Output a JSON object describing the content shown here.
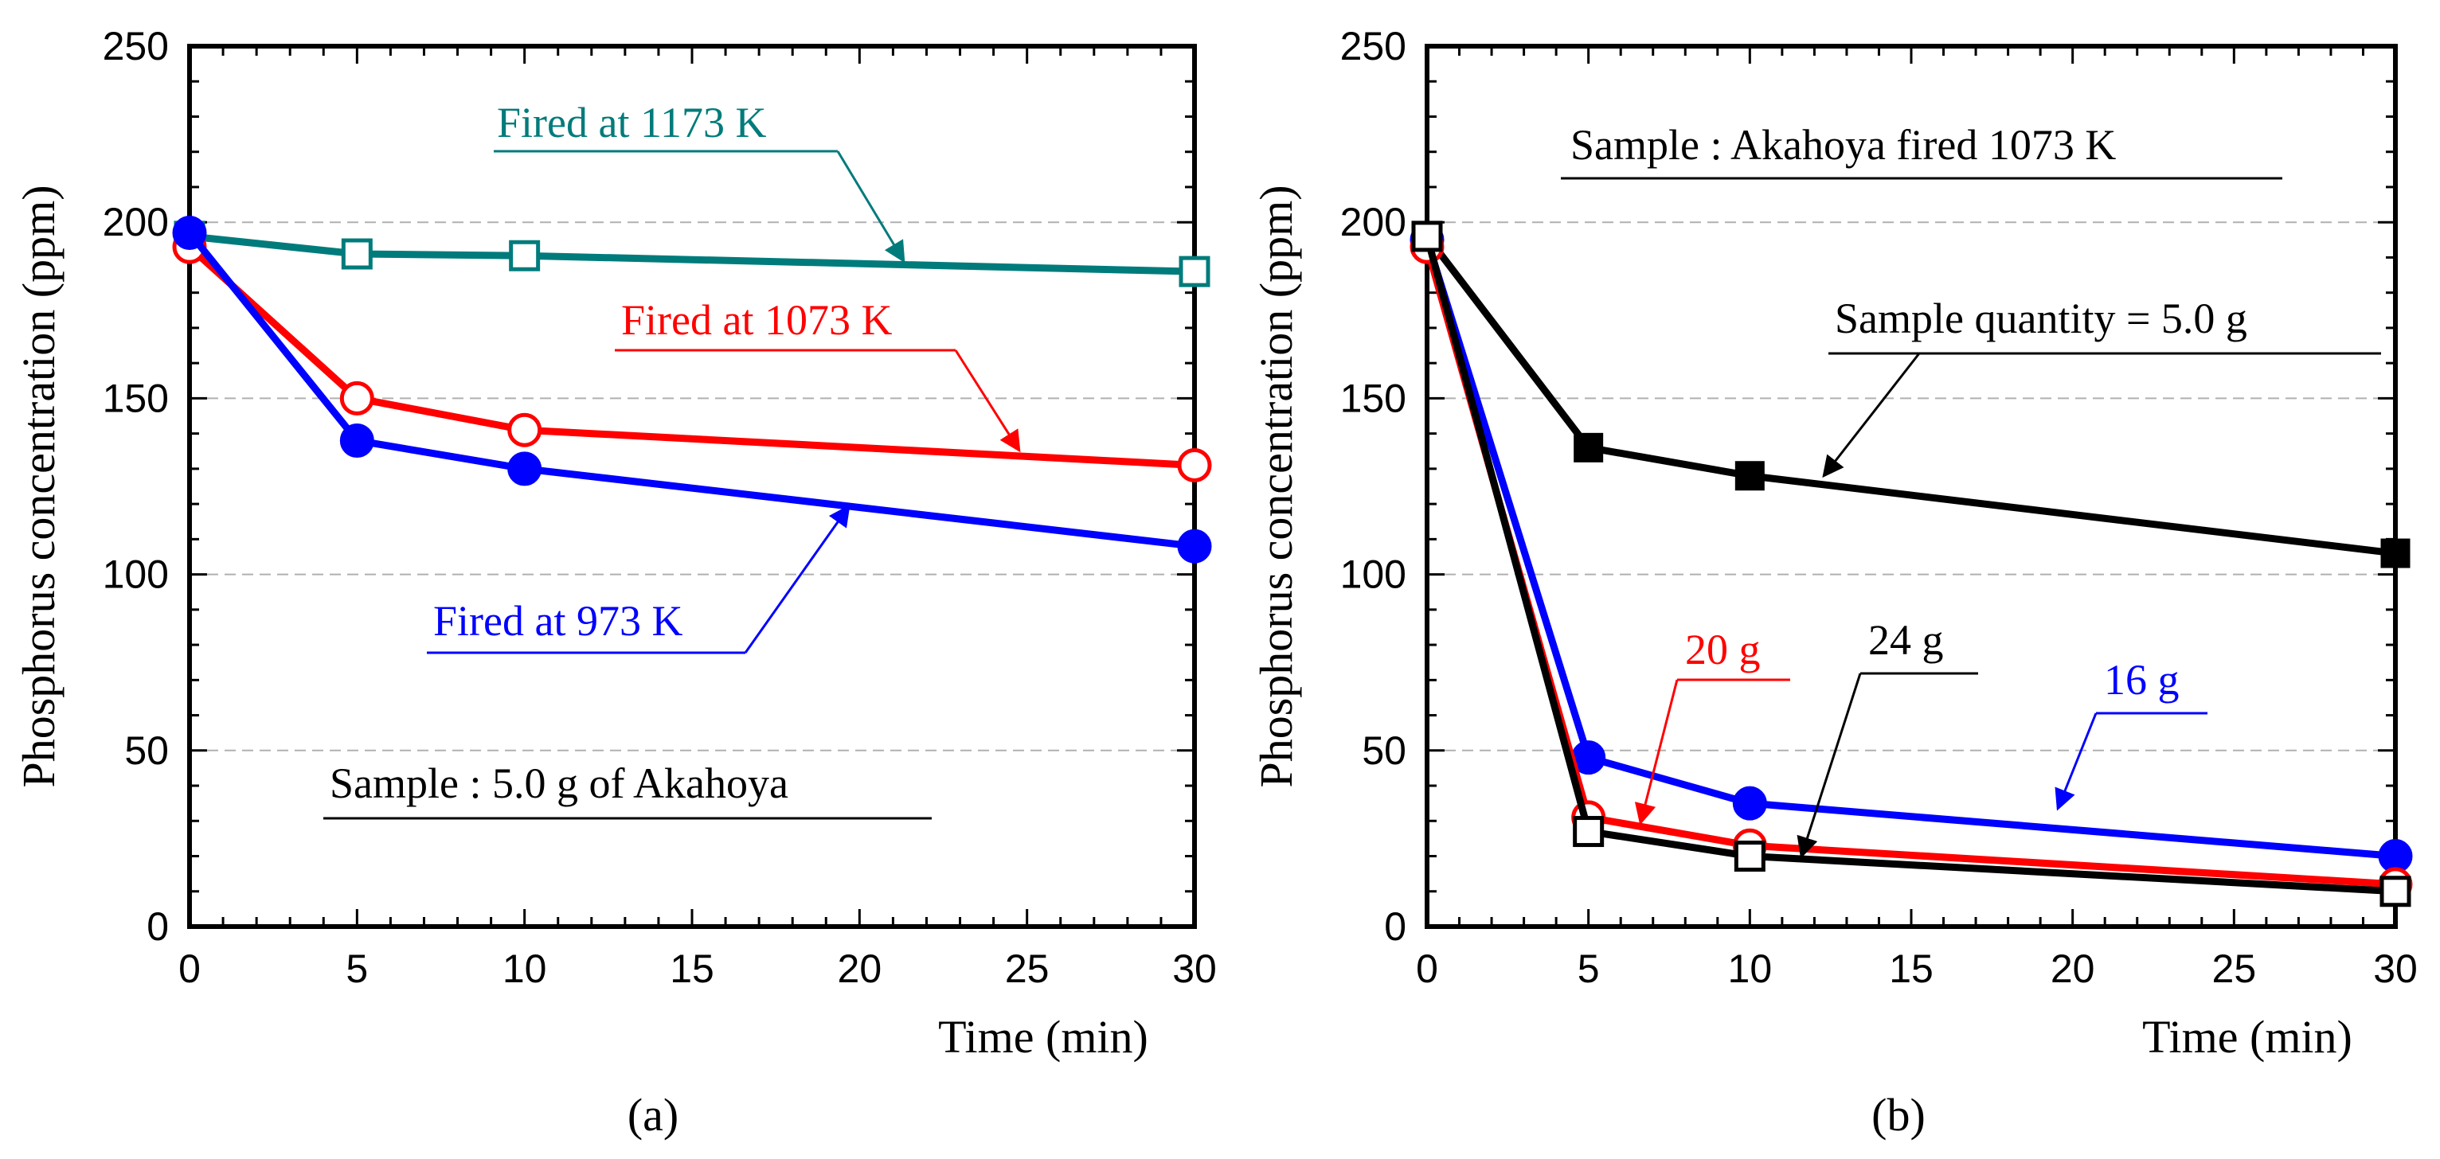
{
  "chart_data": [
    {
      "type": "line",
      "panel_label": "(a)",
      "xlabel": "Time (min)",
      "ylabel": "Phosphorus concentration (ppm)",
      "xlim": [
        0,
        30
      ],
      "ylim": [
        0,
        250
      ],
      "xticks": [
        0,
        5,
        10,
        15,
        20,
        25,
        30
      ],
      "yticks": [
        0,
        50,
        100,
        150,
        200,
        250
      ],
      "grid": "horizontal-dashed",
      "x": [
        0,
        5,
        10,
        30
      ],
      "series": [
        {
          "name": "Fired at 1173 K",
          "color": "#007b7b",
          "marker": "open-square",
          "values": [
            196,
            191,
            190.5,
            186
          ]
        },
        {
          "name": "Fired at 1073 K",
          "color": "#ff0000",
          "marker": "open-circle",
          "values": [
            193,
            150,
            141,
            131
          ]
        },
        {
          "name": "Fired at 973 K",
          "color": "#0000ff",
          "marker": "filled-circle",
          "values": [
            197,
            138,
            130,
            108
          ]
        }
      ],
      "annotations": [
        {
          "text": "Fired at 1173 K",
          "color": "#007b7b",
          "series": 0
        },
        {
          "text": "Fired at 1073 K",
          "color": "#ff0000",
          "series": 1
        },
        {
          "text": "Fired at 973 K",
          "color": "#0000ff",
          "series": 2
        },
        {
          "text": "Sample : 5.0 g of Akahoya",
          "color": "#000000"
        }
      ]
    },
    {
      "type": "line",
      "panel_label": "(b)",
      "xlabel": "Time (min)",
      "ylabel": "Phosphorus concentration (ppm)",
      "xlim": [
        0,
        30
      ],
      "ylim": [
        0,
        250
      ],
      "xticks": [
        0,
        5,
        10,
        15,
        20,
        25,
        30
      ],
      "yticks": [
        0,
        50,
        100,
        150,
        200,
        250
      ],
      "grid": "horizontal-dashed",
      "x": [
        0,
        5,
        10,
        30
      ],
      "series": [
        {
          "name": "Sample quantity = 5.0 g",
          "color": "#000000",
          "marker": "filled-square",
          "values": [
            196,
            136,
            128,
            106
          ]
        },
        {
          "name": "16 g",
          "color": "#0000ff",
          "marker": "filled-circle",
          "values": [
            195,
            48,
            35,
            20
          ]
        },
        {
          "name": "20 g",
          "color": "#ff0000",
          "marker": "open-circle",
          "values": [
            193,
            31,
            23,
            12
          ]
        },
        {
          "name": "24 g",
          "color": "#000000",
          "marker": "open-square",
          "values": [
            196,
            27,
            20,
            10
          ]
        }
      ],
      "annotations": [
        {
          "text": "Sample : Akahoya fired 1073 K",
          "color": "#000000"
        },
        {
          "text": "Sample quantity = 5.0 g",
          "color": "#000000",
          "series": 0
        },
        {
          "text": "16 g",
          "color": "#0000ff",
          "series": 1
        },
        {
          "text": "20 g",
          "color": "#ff0000",
          "series": 2
        },
        {
          "text": "24 g",
          "color": "#000000",
          "series": 3
        }
      ]
    }
  ]
}
